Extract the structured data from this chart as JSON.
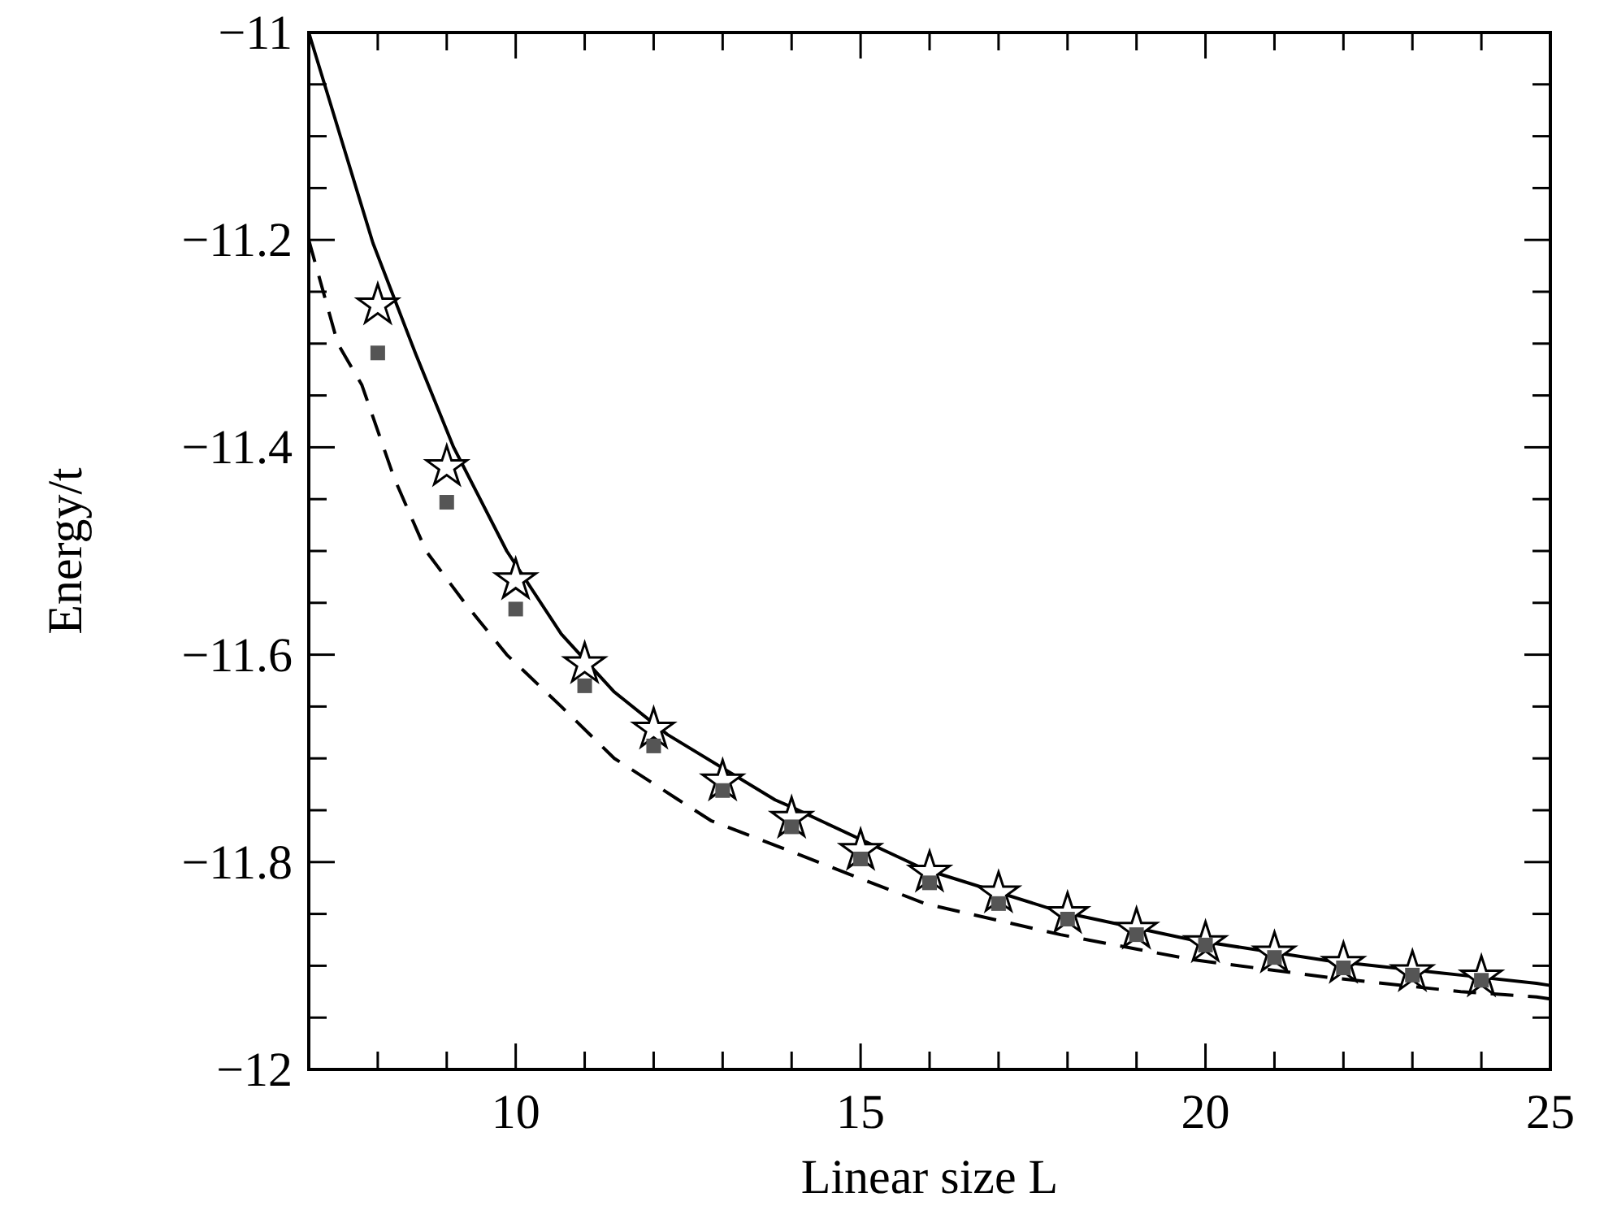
{
  "chart_data": {
    "type": "scatter",
    "xlabel": "Linear size L",
    "ylabel": "Energy/t",
    "xlim": [
      7,
      25
    ],
    "ylim": [
      -12,
      -11
    ],
    "xticks": [
      {
        "value": 7,
        "label": null
      },
      {
        "value": 8,
        "label": null
      },
      {
        "value": 9,
        "label": null
      },
      10,
      {
        "value": 11,
        "label": null
      },
      {
        "value": 12,
        "label": null
      },
      {
        "value": 13,
        "label": null
      },
      {
        "value": 14,
        "label": null
      },
      15,
      {
        "value": 16,
        "label": null
      },
      {
        "value": 17,
        "label": null
      },
      {
        "value": 18,
        "label": null
      },
      {
        "value": 19,
        "label": null
      },
      20,
      {
        "value": 21,
        "label": null
      },
      {
        "value": 22,
        "label": null
      },
      {
        "value": 23,
        "label": null
      },
      {
        "value": 24,
        "label": null
      },
      25
    ],
    "yticks": [
      -12,
      {
        "value": -11.95,
        "label": null
      },
      {
        "value": -11.9,
        "label": null
      },
      {
        "value": -11.85,
        "label": null
      },
      -11.8,
      {
        "value": -11.75,
        "label": null
      },
      {
        "value": -11.7,
        "label": null
      },
      {
        "value": -11.65,
        "label": null
      },
      -11.6,
      {
        "value": -11.55,
        "label": null
      },
      {
        "value": -11.5,
        "label": null
      },
      {
        "value": -11.45,
        "label": null
      },
      -11.4,
      {
        "value": -11.35,
        "label": null
      },
      {
        "value": -11.3,
        "label": null
      },
      {
        "value": -11.25,
        "label": null
      },
      -11.2,
      {
        "value": -11.15,
        "label": null
      },
      {
        "value": -11.1,
        "label": null
      },
      {
        "value": -11.05,
        "label": null
      },
      -11
    ],
    "grid": false,
    "series": [
      {
        "type": "line",
        "color": "#000000",
        "line_style": "solid",
        "marker": "none",
        "x": [
          7,
          7.93,
          8.55,
          9.1,
          9.87,
          10.66,
          11.43,
          12.2,
          13.76,
          14,
          15.93,
          17.9,
          19.8,
          21.76,
          23.7,
          24.8,
          25
        ],
        "values": [
          -11.0,
          -11.203,
          -11.31,
          -11.4,
          -11.5,
          -11.58,
          -11.636,
          -11.677,
          -11.74,
          -11.747,
          -11.807,
          -11.848,
          -11.875,
          -11.895,
          -11.909,
          -11.917,
          -11.919
        ]
      },
      {
        "type": "line",
        "color": "#000000",
        "line_style": "dashed",
        "marker": "none",
        "x": [
          7,
          7.42,
          7.77,
          8.24,
          8.7,
          9.26,
          9.87,
          10.66,
          11.43,
          12.36,
          12.83,
          14,
          15.93,
          17.9,
          19.8,
          21.76,
          23.7,
          24.8,
          25
        ],
        "values": [
          -11.2,
          -11.3,
          -11.34,
          -11.43,
          -11.5,
          -11.55,
          -11.6,
          -11.65,
          -11.7,
          -11.74,
          -11.76,
          -11.79,
          -11.84,
          -11.87,
          -11.894,
          -11.911,
          -11.925,
          -11.93,
          -11.932
        ]
      },
      {
        "color": "#000000",
        "marker": "star",
        "x": [
          8,
          9,
          10,
          11,
          12,
          13,
          14,
          15,
          16,
          17,
          18,
          19,
          20,
          21,
          22,
          23,
          24
        ],
        "values": [
          -11.263,
          -11.419,
          -11.528,
          -11.609,
          -11.672,
          -11.722,
          -11.758,
          -11.789,
          -11.81,
          -11.83,
          -11.85,
          -11.865,
          -11.878,
          -11.888,
          -11.898,
          -11.906,
          -11.911
        ]
      },
      {
        "color": "#555555",
        "marker": "square",
        "x": [
          8,
          9,
          10,
          11,
          12,
          13,
          14,
          15,
          16,
          17,
          18,
          19,
          20,
          21,
          22,
          23,
          24
        ],
        "values": [
          -11.309,
          -11.453,
          -11.556,
          -11.63,
          -11.688,
          -11.731,
          -11.766,
          -11.797,
          -11.82,
          -11.84,
          -11.855,
          -11.87,
          -11.88,
          -11.892,
          -11.902,
          -11.909,
          -11.914
        ]
      }
    ]
  }
}
